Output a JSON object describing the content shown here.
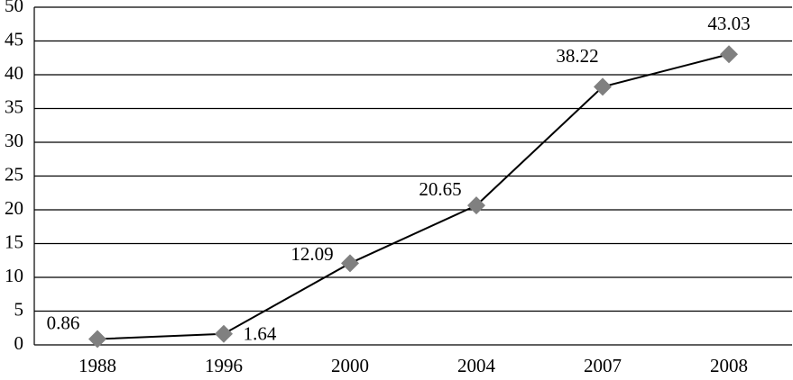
{
  "chart_data": {
    "type": "line",
    "categories": [
      "1988",
      "1996",
      "2000",
      "2004",
      "2007",
      "2008"
    ],
    "values": [
      0.86,
      1.64,
      12.09,
      20.65,
      38.22,
      43.03
    ],
    "color": "#000000",
    "marker_color": "#808080",
    "ylim": [
      0,
      50
    ],
    "yticks": [
      0,
      5,
      10,
      15,
      20,
      25,
      30,
      35,
      40,
      45,
      50
    ],
    "grid": true
  }
}
